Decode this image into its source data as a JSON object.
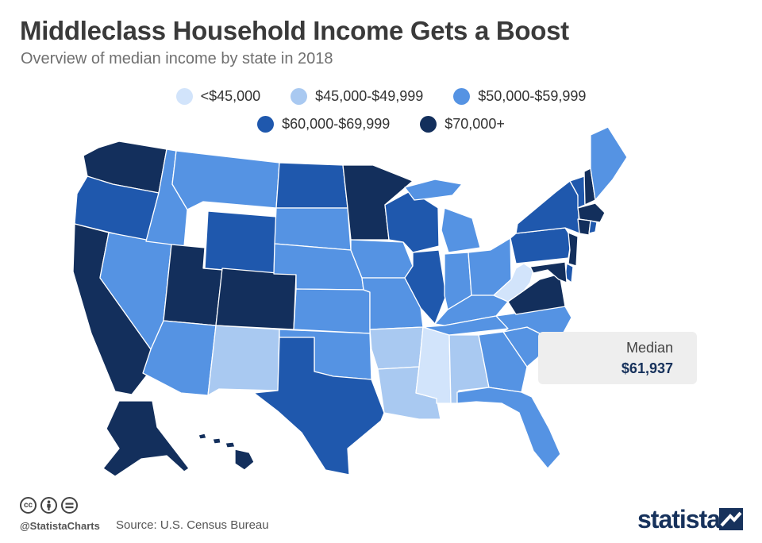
{
  "header": {
    "title": "Middleclass Household Income Gets a Boost",
    "subtitle": "Overview of median income by state in 2018"
  },
  "colors": {
    "under_45k": "#d2e4fb",
    "45k_50k": "#a9c9f1",
    "50k_60k": "#5593e3",
    "60k_70k": "#1f58ad",
    "70k_plus": "#132f5c",
    "median_value": "#17325c",
    "brand": "#17325c"
  },
  "legend": {
    "items": [
      {
        "label": "<$45,000",
        "color_key": "under_45k"
      },
      {
        "label": "$45,000-$49,999",
        "color_key": "45k_50k"
      },
      {
        "label": "$50,000-$59,999",
        "color_key": "50k_60k"
      },
      {
        "label": "$60,000-$69,999",
        "color_key": "60k_70k"
      },
      {
        "label": "$70,000+",
        "color_key": "70k_plus"
      }
    ]
  },
  "map_data": {
    "type": "choropleth",
    "region": "United States",
    "states": {
      "WA": "70k_plus",
      "OR": "60k_70k",
      "CA": "70k_plus",
      "NV": "50k_60k",
      "ID": "50k_60k",
      "MT": "50k_60k",
      "WY": "60k_70k",
      "UT": "70k_plus",
      "CO": "70k_plus",
      "AZ": "50k_60k",
      "NM": "45k_50k",
      "ND": "60k_70k",
      "SD": "50k_60k",
      "NE": "50k_60k",
      "KS": "50k_60k",
      "OK": "50k_60k",
      "TX": "60k_70k",
      "MN": "70k_plus",
      "IA": "50k_60k",
      "MO": "50k_60k",
      "AR": "45k_50k",
      "LA": "45k_50k",
      "WI": "60k_70k",
      "IL": "60k_70k",
      "MS": "under_45k",
      "MI": "50k_60k",
      "IN": "50k_60k",
      "OH": "50k_60k",
      "KY": "50k_60k",
      "TN": "50k_60k",
      "AL": "45k_50k",
      "GA": "50k_60k",
      "FL": "50k_60k",
      "SC": "50k_60k",
      "NC": "50k_60k",
      "VA": "70k_plus",
      "WV": "under_45k",
      "PA": "60k_70k",
      "NY": "60k_70k",
      "VT": "60k_70k",
      "NH": "70k_plus",
      "ME": "50k_60k",
      "MA": "70k_plus",
      "CT": "70k_plus",
      "RI": "60k_70k",
      "NJ": "70k_plus",
      "DE": "60k_70k",
      "MD": "70k_plus",
      "AK": "70k_plus",
      "HI": "70k_plus"
    }
  },
  "median": {
    "label": "Median",
    "value": "$61,937"
  },
  "footer": {
    "icons": [
      "cc-license-icon",
      "attribution-icon",
      "no-derivatives-icon"
    ],
    "handle": "@StatistaCharts",
    "source": "Source: U.S. Census Bureau",
    "brand": "statista"
  }
}
